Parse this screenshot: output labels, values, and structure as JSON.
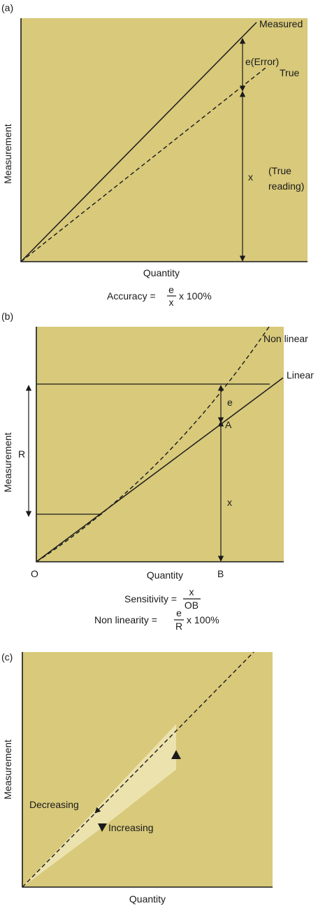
{
  "panel_a": {
    "tag": "(a)",
    "ylabel": "Measurement",
    "xlabel": "Quantity",
    "measured_label": "Measured",
    "true_label": "True",
    "error_label": "e(Error)",
    "x_label": "x",
    "true_reading_1": "(True",
    "true_reading_2": "reading)",
    "formula_lhs": "Accuracy =",
    "formula_num": "e",
    "formula_den": "x",
    "formula_rhs": "x 100%"
  },
  "panel_b": {
    "tag": "(b)",
    "ylabel": "Measurement",
    "xlabel": "Quantity",
    "nonlinear_label": "Non linear",
    "linear_label": "Linear",
    "e_label": "e",
    "a_label": "A",
    "x_label": "x",
    "r_label": "R",
    "o_label": "O",
    "b_label": "B",
    "sens_lhs": "Sensitivity =",
    "sens_num": "x",
    "sens_den": "OB",
    "nonlin_lhs": "Non linearity =",
    "nonlin_num": "e",
    "nonlin_den": "R",
    "nonlin_rhs": "x 100%"
  },
  "panel_c": {
    "tag": "(c)",
    "ylabel": "Measurement",
    "xlabel": "Quantity",
    "decreasing_label": "Decreasing",
    "increasing_label": "Increasing"
  },
  "colors": {
    "panel_background": "#d8c97b",
    "hysteresis_fill": "#ece2ad",
    "ink": "#1a1a1a"
  }
}
